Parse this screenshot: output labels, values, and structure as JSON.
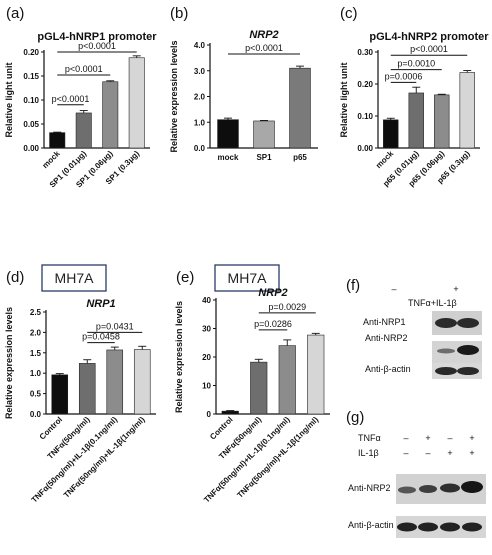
{
  "panels": {
    "a": "(a)",
    "b": "(b)",
    "c": "(c)",
    "d": "(d)",
    "e": "(e)",
    "f": "(f)",
    "g": "(g)"
  },
  "cell_line_label": "MH7A",
  "chart_data": [
    {
      "id": "a",
      "type": "bar",
      "title": "pGL4-hNRP1 promoter",
      "title_italic": false,
      "ylabel": "Relative light unit",
      "ylim": [
        0,
        0.2
      ],
      "yticks": [
        0.0,
        0.05,
        0.1,
        0.15,
        0.2
      ],
      "tick_format": "fixed2",
      "categories": [
        "mock",
        "SP1 (0.01μg)",
        "SP1 (0.06μg)",
        "SP1 (0.3μg)"
      ],
      "values": [
        0.032,
        0.073,
        0.138,
        0.188
      ],
      "errors": [
        0.001,
        0.005,
        0.002,
        0.004
      ],
      "colors": [
        "#0d0d0d",
        "#6e6e6e",
        "#8c8c8c",
        "#d6d6d6"
      ],
      "comparisons": [
        {
          "from": 0,
          "to": 1,
          "label": "p<0.0001"
        },
        {
          "from": 0,
          "to": 2,
          "label": "p<0.0001"
        },
        {
          "from": 0,
          "to": 3,
          "label": "p<0.0001"
        }
      ],
      "comparison_y": [
        0.09,
        0.152,
        0.2
      ]
    },
    {
      "id": "b",
      "type": "bar",
      "title": "NRP2",
      "title_italic": true,
      "ylabel": "Relative expression levels",
      "ylim": [
        0,
        4
      ],
      "yticks": [
        0.0,
        1.0,
        2.0,
        3.0,
        4.0
      ],
      "tick_format": "fixed1",
      "categories": [
        "mock",
        "SP1",
        "p65"
      ],
      "values": [
        1.1,
        1.05,
        3.1
      ],
      "errors": [
        0.06,
        0.02,
        0.08
      ],
      "colors": [
        "#0d0d0d",
        "#a8a8a8",
        "#7a7a7a"
      ],
      "rotate_cats": false,
      "comparisons": [
        {
          "from": 0,
          "to": 2,
          "label": "p<0.0001"
        }
      ],
      "comparison_y": [
        3.65
      ]
    },
    {
      "id": "c",
      "type": "bar",
      "title": "pGL4-hNRP2 promoter",
      "title_italic": false,
      "ylabel": "Relative light unit",
      "ylim": [
        0,
        0.3
      ],
      "yticks": [
        0.0,
        0.1,
        0.2,
        0.3
      ],
      "tick_format": "fixed2",
      "categories": [
        "mock",
        "p65 (0.01μg)",
        "p65 (0.06μg)",
        "p65 (0.3μg)"
      ],
      "values": [
        0.088,
        0.172,
        0.166,
        0.236
      ],
      "errors": [
        0.005,
        0.018,
        0.002,
        0.006
      ],
      "colors": [
        "#0d0d0d",
        "#6e6e6e",
        "#8c8c8c",
        "#d6d6d6"
      ],
      "comparisons": [
        {
          "from": 0,
          "to": 1,
          "label": "p=0.0006"
        },
        {
          "from": 0,
          "to": 2,
          "label": "p=0.0010"
        },
        {
          "from": 0,
          "to": 3,
          "label": "p<0.0001"
        }
      ],
      "comparison_y": [
        0.205,
        0.245,
        0.29
      ]
    },
    {
      "id": "d",
      "type": "bar",
      "title": "NRP1",
      "title_italic": true,
      "ylabel": "Relative expression levels",
      "ylim": [
        0,
        2.5
      ],
      "yticks": [
        0.0,
        0.5,
        1.0,
        1.5,
        2.0,
        2.5
      ],
      "tick_format": "fixed1",
      "categories": [
        "Control",
        "TNFα(50ng/ml)",
        "TNFα(50ng/ml)+IL-1β(0.1ng/ml)",
        "TNFα(50ng/ml)+IL-1β(1ng/ml)"
      ],
      "values": [
        0.96,
        1.24,
        1.57,
        1.58
      ],
      "errors": [
        0.03,
        0.09,
        0.07,
        0.08
      ],
      "colors": [
        "#0d0d0d",
        "#6e6e6e",
        "#8c8c8c",
        "#d6d6d6"
      ],
      "comparisons": [
        {
          "from": 1,
          "to": 2,
          "label": "p=0.0458"
        },
        {
          "from": 1,
          "to": 3,
          "label": "p=0.0431"
        }
      ],
      "comparison_y": [
        1.75,
        2.0
      ]
    },
    {
      "id": "e",
      "type": "bar",
      "title": "NRP2",
      "title_italic": true,
      "ylabel": "Relative expression levels",
      "ylim": [
        0,
        40
      ],
      "yticks": [
        0,
        10,
        20,
        30,
        40
      ],
      "tick_format": "int",
      "categories": [
        "Control",
        "TNFα(50ng/ml)",
        "TNFα(50ng/ml)+IL-1β(0.1ng/ml)",
        "TNFα(50ng/ml)+IL-1β(1ng/ml)"
      ],
      "values": [
        1.0,
        18.2,
        24.0,
        27.7
      ],
      "errors": [
        0.2,
        1.0,
        2.0,
        0.6
      ],
      "colors": [
        "#0d0d0d",
        "#6e6e6e",
        "#8c8c8c",
        "#d6d6d6"
      ],
      "comparisons": [
        {
          "from": 1,
          "to": 2,
          "label": "p=0.0286"
        },
        {
          "from": 1,
          "to": 3,
          "label": "p=0.0029"
        }
      ],
      "comparison_y": [
        29.5,
        35.5
      ]
    }
  ],
  "blot_f": {
    "treatment_label": "TNFα+IL-1β",
    "lane_signs": [
      "–",
      "+"
    ],
    "rows": [
      "Anti-NRP1",
      "Anti-NRP2",
      "Anti-β-actin"
    ]
  },
  "blot_g": {
    "treatments": [
      {
        "label": "TNFα",
        "signs": [
          "–",
          "+",
          "–",
          "+"
        ]
      },
      {
        "label": "IL-1β",
        "signs": [
          "–",
          "–",
          "+",
          "+"
        ]
      }
    ],
    "rows": [
      "Anti-NRP2",
      "Anti-β-actin"
    ]
  }
}
